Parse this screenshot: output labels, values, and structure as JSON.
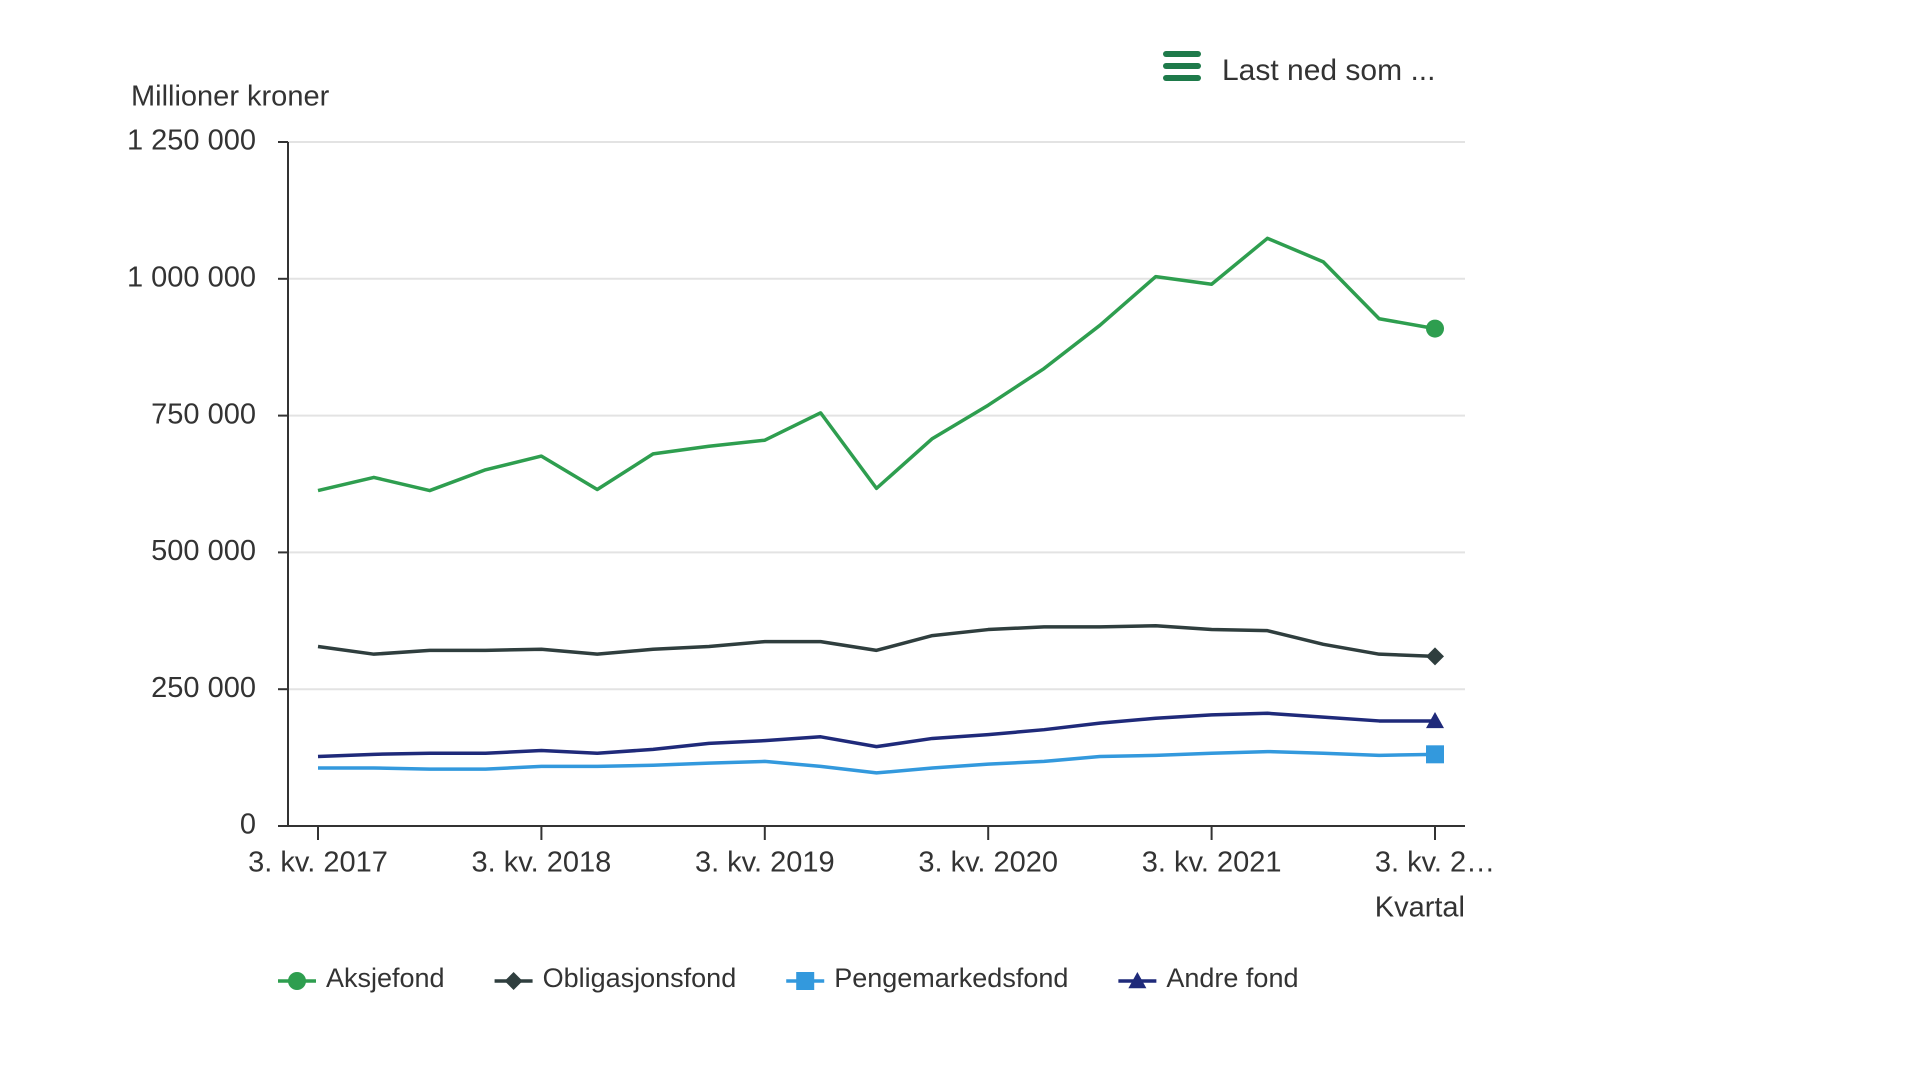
{
  "chart_data": {
    "type": "line",
    "y_label": "Millioner kroner",
    "x_label": "Kvartal",
    "download_button": "Last ned som ...",
    "categories": [
      "3. kv. 2017",
      null,
      null,
      null,
      "3. kv. 2018",
      null,
      null,
      null,
      "3. kv. 2019",
      null,
      null,
      null,
      "3. kv. 2020",
      null,
      null,
      null,
      "3. kv. 2021",
      null,
      null,
      null,
      "3. kv. 2…"
    ],
    "series": [
      {
        "name": "Aksjefond",
        "color": "#2e9e4f",
        "marker": "circle",
        "values": [
          613000,
          637000,
          613000,
          651000,
          676000,
          615000,
          680000,
          694000,
          705000,
          755000,
          617000,
          708000,
          769000,
          836000,
          915000,
          1004000,
          990000,
          1074000,
          1031000,
          927000,
          909000
        ]
      },
      {
        "name": "Obligasjonsfond",
        "color": "#2f3e3e",
        "marker": "diamond",
        "values": [
          328000,
          314000,
          321000,
          321000,
          323000,
          314000,
          323000,
          328000,
          337000,
          337000,
          321000,
          348000,
          359000,
          364000,
          364000,
          366000,
          359000,
          357000,
          332000,
          314000,
          310000
        ]
      },
      {
        "name": "Pengemarkedsfond",
        "color": "#3399dd",
        "marker": "square",
        "values": [
          106000,
          106000,
          104000,
          104000,
          109000,
          109000,
          111000,
          115000,
          118000,
          109000,
          97000,
          106000,
          113000,
          118000,
          127000,
          129000,
          133000,
          136000,
          133000,
          129000,
          131000
        ]
      },
      {
        "name": "Andre fond",
        "color": "#1f2a7a",
        "marker": "triangle",
        "values": [
          127000,
          131000,
          133000,
          133000,
          138000,
          133000,
          140000,
          151000,
          156000,
          163000,
          145000,
          160000,
          167000,
          176000,
          188000,
          197000,
          203000,
          206000,
          199000,
          192000,
          192000
        ]
      }
    ],
    "ylim": [
      0,
      1250000
    ],
    "yticks": [
      0,
      {
        "value": 250000,
        "label": "250 000"
      },
      {
        "value": 500000,
        "label": "500 000"
      },
      {
        "value": 750000,
        "label": "750 000"
      },
      {
        "value": 1000000,
        "label": "1 000 000"
      },
      {
        "value": 1250000,
        "label": "1 250 000"
      }
    ],
    "grid": true,
    "legend_position": "bottom"
  }
}
